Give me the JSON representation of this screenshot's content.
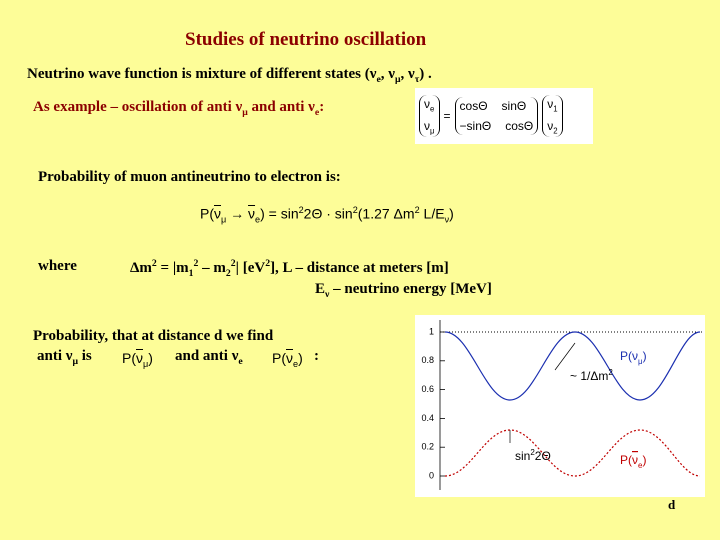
{
  "title": "Studies of neutrino oscillation",
  "intro": [
    "Neutrino wave function is mixture of different states (ν",
    {
      "sub": "e"
    },
    ", ν",
    {
      "sub": "μ"
    },
    ", ν",
    {
      "sub": "τ"
    },
    ") ."
  ],
  "example": [
    "As example – oscillation of anti ν",
    {
      "sub": "μ"
    },
    " and anti ν",
    {
      "sub": "e"
    },
    ":"
  ],
  "mixing": {
    "lhs": [
      [
        "ν",
        {
          "sub": "e"
        }
      ],
      [
        "ν",
        {
          "sub": "μ"
        }
      ]
    ],
    "equals": "=",
    "matrix": [
      [
        "cosΘ",
        "sinΘ"
      ],
      [
        "−sinΘ",
        "cosΘ"
      ]
    ],
    "rhs": [
      [
        "ν",
        {
          "sub": "1"
        }
      ],
      [
        "ν",
        {
          "sub": "2"
        }
      ]
    ]
  },
  "probability_intro": "Probability of muon antineutrino to electron is:",
  "formula": [
    "P(",
    {
      "bar": "ν"
    },
    {
      "sub": "μ"
    },
    " → ",
    {
      "bar": "ν"
    },
    {
      "sub": "e"
    },
    ") = sin",
    {
      "sup": "2"
    },
    "2Θ · sin",
    {
      "sup": "2"
    },
    "(1.27 Δm",
    {
      "sup": "2"
    },
    " L/E",
    {
      "sub": "ν"
    },
    ")"
  ],
  "where": "where",
  "definitions": [
    [
      "Δm",
      {
        "sup": "2"
      },
      " = |m",
      {
        "sub": "1"
      },
      {
        "sup": "2"
      },
      " – m",
      {
        "sub": "2"
      },
      {
        "sup": "2"
      },
      "| [eV",
      {
        "sup": "2"
      },
      "],  L – distance at meters [m]"
    ],
    [
      "E",
      {
        "sub": "ν"
      },
      " – neutrino energy [MeV]"
    ]
  ],
  "distance": {
    "line1": "Probability, that at distance d we find",
    "line2": [
      "anti ν",
      {
        "sub": "μ"
      },
      " is"
    ],
    "p_mu": [
      "P(",
      {
        "bar": "ν"
      },
      {
        "sub": "μ"
      },
      ")"
    ],
    "and": [
      "and anti ν",
      {
        "sub": "e"
      }
    ],
    "p_e": [
      "P(",
      {
        "bar": "ν"
      },
      {
        "sub": "e"
      },
      ")"
    ],
    "colon": ":"
  },
  "plot": {
    "ylim": [
      -0.07,
      1.08
    ],
    "yticks": [
      0,
      0.2,
      0.4,
      0.6,
      0.8,
      1
    ],
    "labels": {
      "p_mu": [
        "P(ν",
        {
          "sub": "μ"
        },
        ")"
      ],
      "period": [
        "~ 1/Δm",
        {
          "sup": "2"
        }
      ],
      "amplitude": [
        "sin",
        {
          "sup": "2"
        },
        "2Θ"
      ],
      "p_e": [
        "P(",
        {
          "bar": "ν"
        },
        {
          "sub": "e"
        },
        ")"
      ]
    }
  },
  "footer": "d"
}
